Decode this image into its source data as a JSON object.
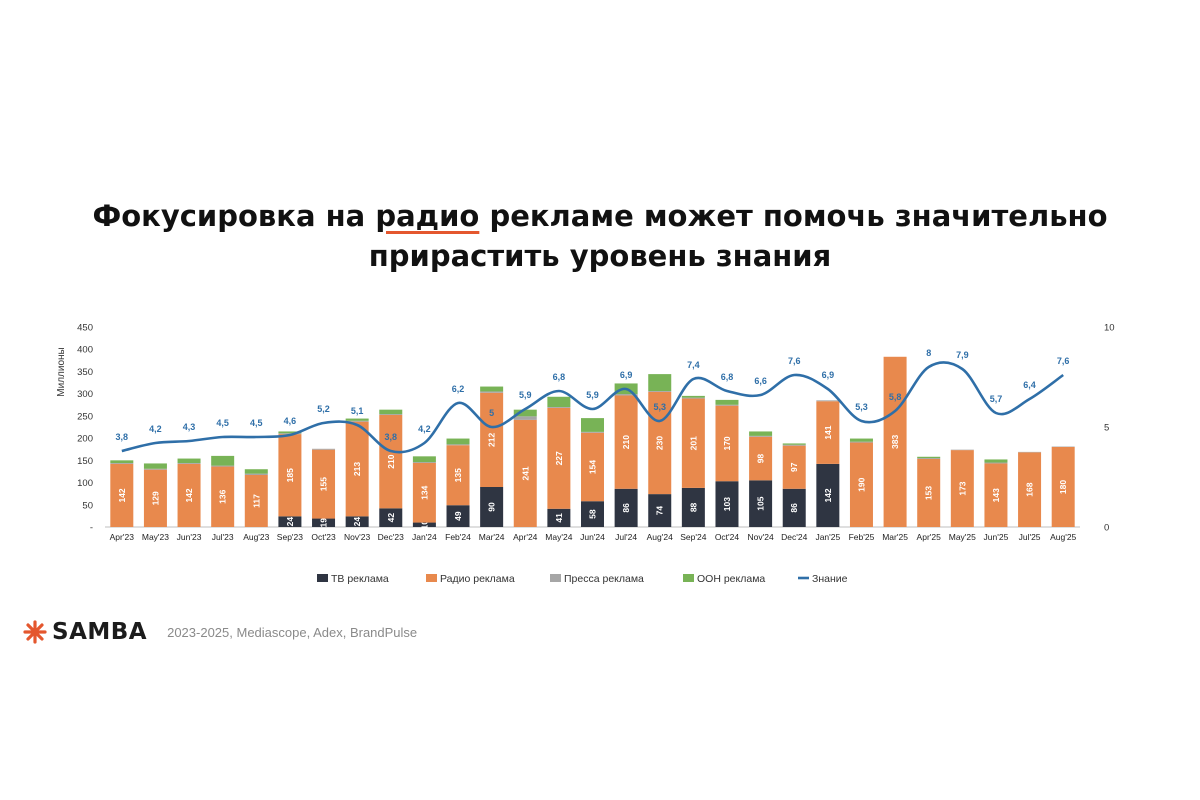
{
  "colors": {
    "tv": "#2f3542",
    "radio": "#e8894d",
    "press": "#a6a6a6",
    "ooh": "#78b356",
    "awareness": "#2f6fa8",
    "accent": "#e4572e"
  },
  "slide": {
    "title_part1": "Фокусировка на ",
    "title_highlight": "радио",
    "title_part2": " рекламе может помочь значительно",
    "title_line2": "прирастить уровень знания"
  },
  "footer": {
    "brand": "SAMBA",
    "source": "2023-2025, Mediascope, Adex, BrandPulse"
  },
  "chart_data": {
    "type": "bar",
    "stacked": true,
    "title": "",
    "ylabel": "Миллионы",
    "ylim": [
      0,
      450
    ],
    "yticks": [
      "-",
      "50",
      "100",
      "150",
      "200",
      "250",
      "300",
      "350",
      "400",
      "450"
    ],
    "y2lim": [
      0,
      10
    ],
    "y2ticks": [
      "0",
      "5",
      "10"
    ],
    "legend_position": "bottom",
    "categories": [
      "Apr'23",
      "May'23",
      "Jun'23",
      "Jul'23",
      "Aug'23",
      "Sep'23",
      "Oct'23",
      "Nov'23",
      "Dec'23",
      "Jan'24",
      "Feb'24",
      "Mar'24",
      "Apr'24",
      "May'24",
      "Jun'24",
      "Jul'24",
      "Aug'24",
      "Sep'24",
      "Oct'24",
      "Nov'24",
      "Dec'24",
      "Jan'25",
      "Feb'25",
      "Mar'25",
      "Apr'25",
      "May'25",
      "Jun'25",
      "Jul'25",
      "Aug'25"
    ],
    "series": [
      {
        "name": "ТВ реклама",
        "type": "bar",
        "values": [
          0,
          0,
          0,
          0,
          0,
          24,
          19,
          24,
          42,
          10,
          49,
          90,
          0,
          41,
          58,
          86,
          74,
          88,
          103,
          105,
          86,
          142,
          0,
          0,
          0,
          0,
          0,
          0,
          0
        ],
        "labels": [
          "",
          "",
          "",
          "",
          "",
          "24",
          "19",
          "24",
          "42",
          "10",
          "49",
          "90",
          "",
          "41",
          "58",
          "86",
          "74",
          "88",
          "103",
          "105",
          "86",
          "142",
          "",
          "",
          "",
          "",
          "",
          "",
          ""
        ]
      },
      {
        "name": "Радио реклама",
        "type": "bar",
        "values": [
          142,
          129,
          142,
          136,
          117,
          185,
          155,
          213,
          210,
          134,
          135,
          212,
          241,
          227,
          154,
          210,
          230,
          201,
          170,
          98,
          97,
          141,
          190,
          383,
          153,
          173,
          143,
          168,
          180
        ],
        "labels": [
          "142",
          "129",
          "142",
          "136",
          "117",
          "185",
          "155",
          "213",
          "210",
          "134",
          "135",
          "212",
          "241",
          "227",
          "154",
          "210",
          "230",
          "201",
          "170",
          "98",
          "97",
          "141",
          "190",
          "383",
          "153",
          "173",
          "143",
          "168",
          "180"
        ]
      },
      {
        "name": "Пресса реклама",
        "type": "bar",
        "values": [
          2,
          2,
          2,
          2,
          3,
          2,
          2,
          2,
          2,
          2,
          2,
          3,
          8,
          2,
          2,
          3,
          2,
          2,
          2,
          2,
          2,
          2,
          2,
          0,
          2,
          1,
          2,
          1,
          1
        ]
      },
      {
        "name": "OOH реклама",
        "type": "bar",
        "values": [
          6,
          12,
          10,
          22,
          10,
          4,
          0,
          5,
          10,
          13,
          13,
          11,
          15,
          23,
          31,
          24,
          38,
          4,
          11,
          10,
          3,
          0,
          7,
          0,
          3,
          0,
          7,
          0,
          0
        ]
      },
      {
        "name": "Знание",
        "type": "line",
        "axis": "right",
        "values": [
          3.8,
          4.2,
          4.3,
          4.5,
          4.5,
          4.6,
          5.2,
          5.1,
          3.8,
          4.2,
          6.2,
          5.0,
          5.9,
          6.8,
          5.9,
          6.9,
          5.3,
          7.4,
          6.8,
          6.6,
          7.6,
          6.9,
          5.3,
          5.8,
          8.0,
          7.9,
          5.7,
          6.4,
          7.6
        ],
        "labels": [
          "3,8",
          "4,2",
          "4,3",
          "4,5",
          "4,5",
          "4,6",
          "5,2",
          "5,1",
          "3,8",
          "4,2",
          "6,2",
          "5",
          "5,9",
          "6,8",
          "5,9",
          "6,9",
          "5,3",
          "7,4",
          "6,8",
          "6,6",
          "7,6",
          "6,9",
          "5,3",
          "5,8",
          "8",
          "7,9",
          "5,7",
          "6,4",
          "7,6"
        ]
      }
    ]
  }
}
